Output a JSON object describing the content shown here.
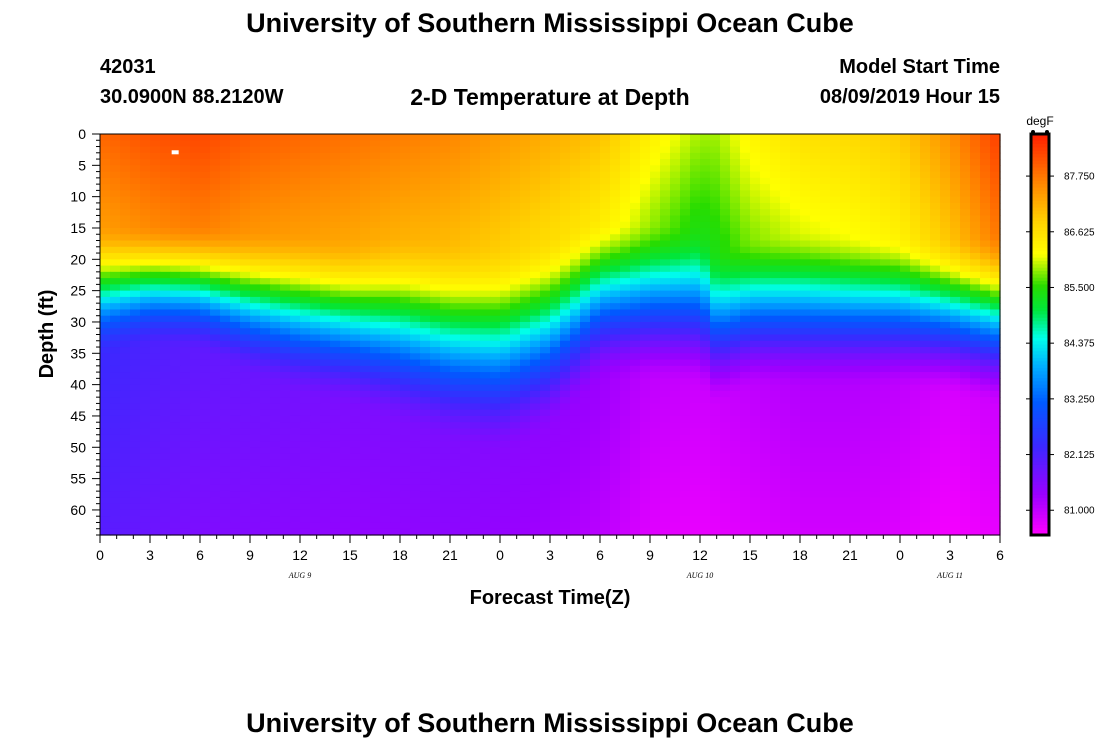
{
  "header": {
    "title": "University of Southern Mississippi Ocean Cube",
    "station_id": "42031",
    "station_coords": "30.0900N 88.2120W",
    "plot_title": "2-D Temperature at Depth",
    "model_start_label": "Model Start Time",
    "model_start_value": "08/09/2019 Hour 15"
  },
  "footer": {
    "title": "University of Southern Mississippi Ocean Cube"
  },
  "chart_data": {
    "type": "heatmap",
    "title": "2-D Temperature at Depth",
    "xlabel": "Forecast Time(Z)",
    "ylabel": "Depth (ft)",
    "x_range_hours": [
      0,
      54
    ],
    "x_tick_labels": [
      "0",
      "3",
      "6",
      "9",
      "12",
      "15",
      "18",
      "21",
      "0",
      "3",
      "6",
      "9",
      "12",
      "15",
      "18",
      "21",
      "0",
      "3",
      "6"
    ],
    "date_labels": [
      {
        "text": "AUG 9",
        "hour": 12
      },
      {
        "text": "AUG 10",
        "hour": 36
      },
      {
        "text": "AUG 11",
        "hour": 51
      }
    ],
    "y_range_ft": [
      0,
      64
    ],
    "y_ticks": [
      0,
      5,
      10,
      15,
      20,
      25,
      30,
      35,
      40,
      45,
      50,
      55,
      60
    ],
    "colorbar": {
      "unit": "degF",
      "min": 80.5,
      "max": 88.6,
      "tick_values": [
        81.0,
        82.125,
        83.25,
        84.375,
        85.5,
        86.625,
        87.75
      ],
      "tick_labels": [
        "81.000",
        "82.125",
        "83.250",
        "84.375",
        "85.500",
        "86.625",
        "87.750"
      ]
    },
    "hours": [
      0,
      3,
      6,
      9,
      12,
      15,
      18,
      21,
      24,
      27,
      30,
      33,
      36,
      37,
      39,
      42,
      45,
      48,
      51,
      54
    ],
    "mixed_layer_depth_ft": [
      20,
      20,
      20,
      20.5,
      21,
      22,
      21,
      22,
      22.5,
      21.5,
      18.5,
      19,
      20,
      24,
      22,
      20.5,
      21,
      21,
      21.5,
      21
    ],
    "deep_layer_top_ft": [
      36,
      34,
      35,
      39,
      42,
      44,
      47,
      50,
      52,
      48,
      40,
      40,
      41,
      44,
      41,
      41,
      41,
      41,
      42,
      44
    ],
    "surface_temp_degF": [
      87.9,
      88.1,
      88.2,
      88.0,
      87.9,
      87.8,
      87.7,
      87.6,
      87.4,
      87.2,
      87.0,
      86.4,
      85.9,
      85.9,
      86.3,
      86.6,
      86.7,
      86.9,
      87.5,
      88.3
    ],
    "deep_temp_degF": [
      82.3,
      82.1,
      81.9,
      81.8,
      81.7,
      81.6,
      81.6,
      81.6,
      81.5,
      81.4,
      81.3,
      81.0,
      80.9,
      80.9,
      81.0,
      81.1,
      81.1,
      81.0,
      80.8,
      80.9
    ]
  }
}
